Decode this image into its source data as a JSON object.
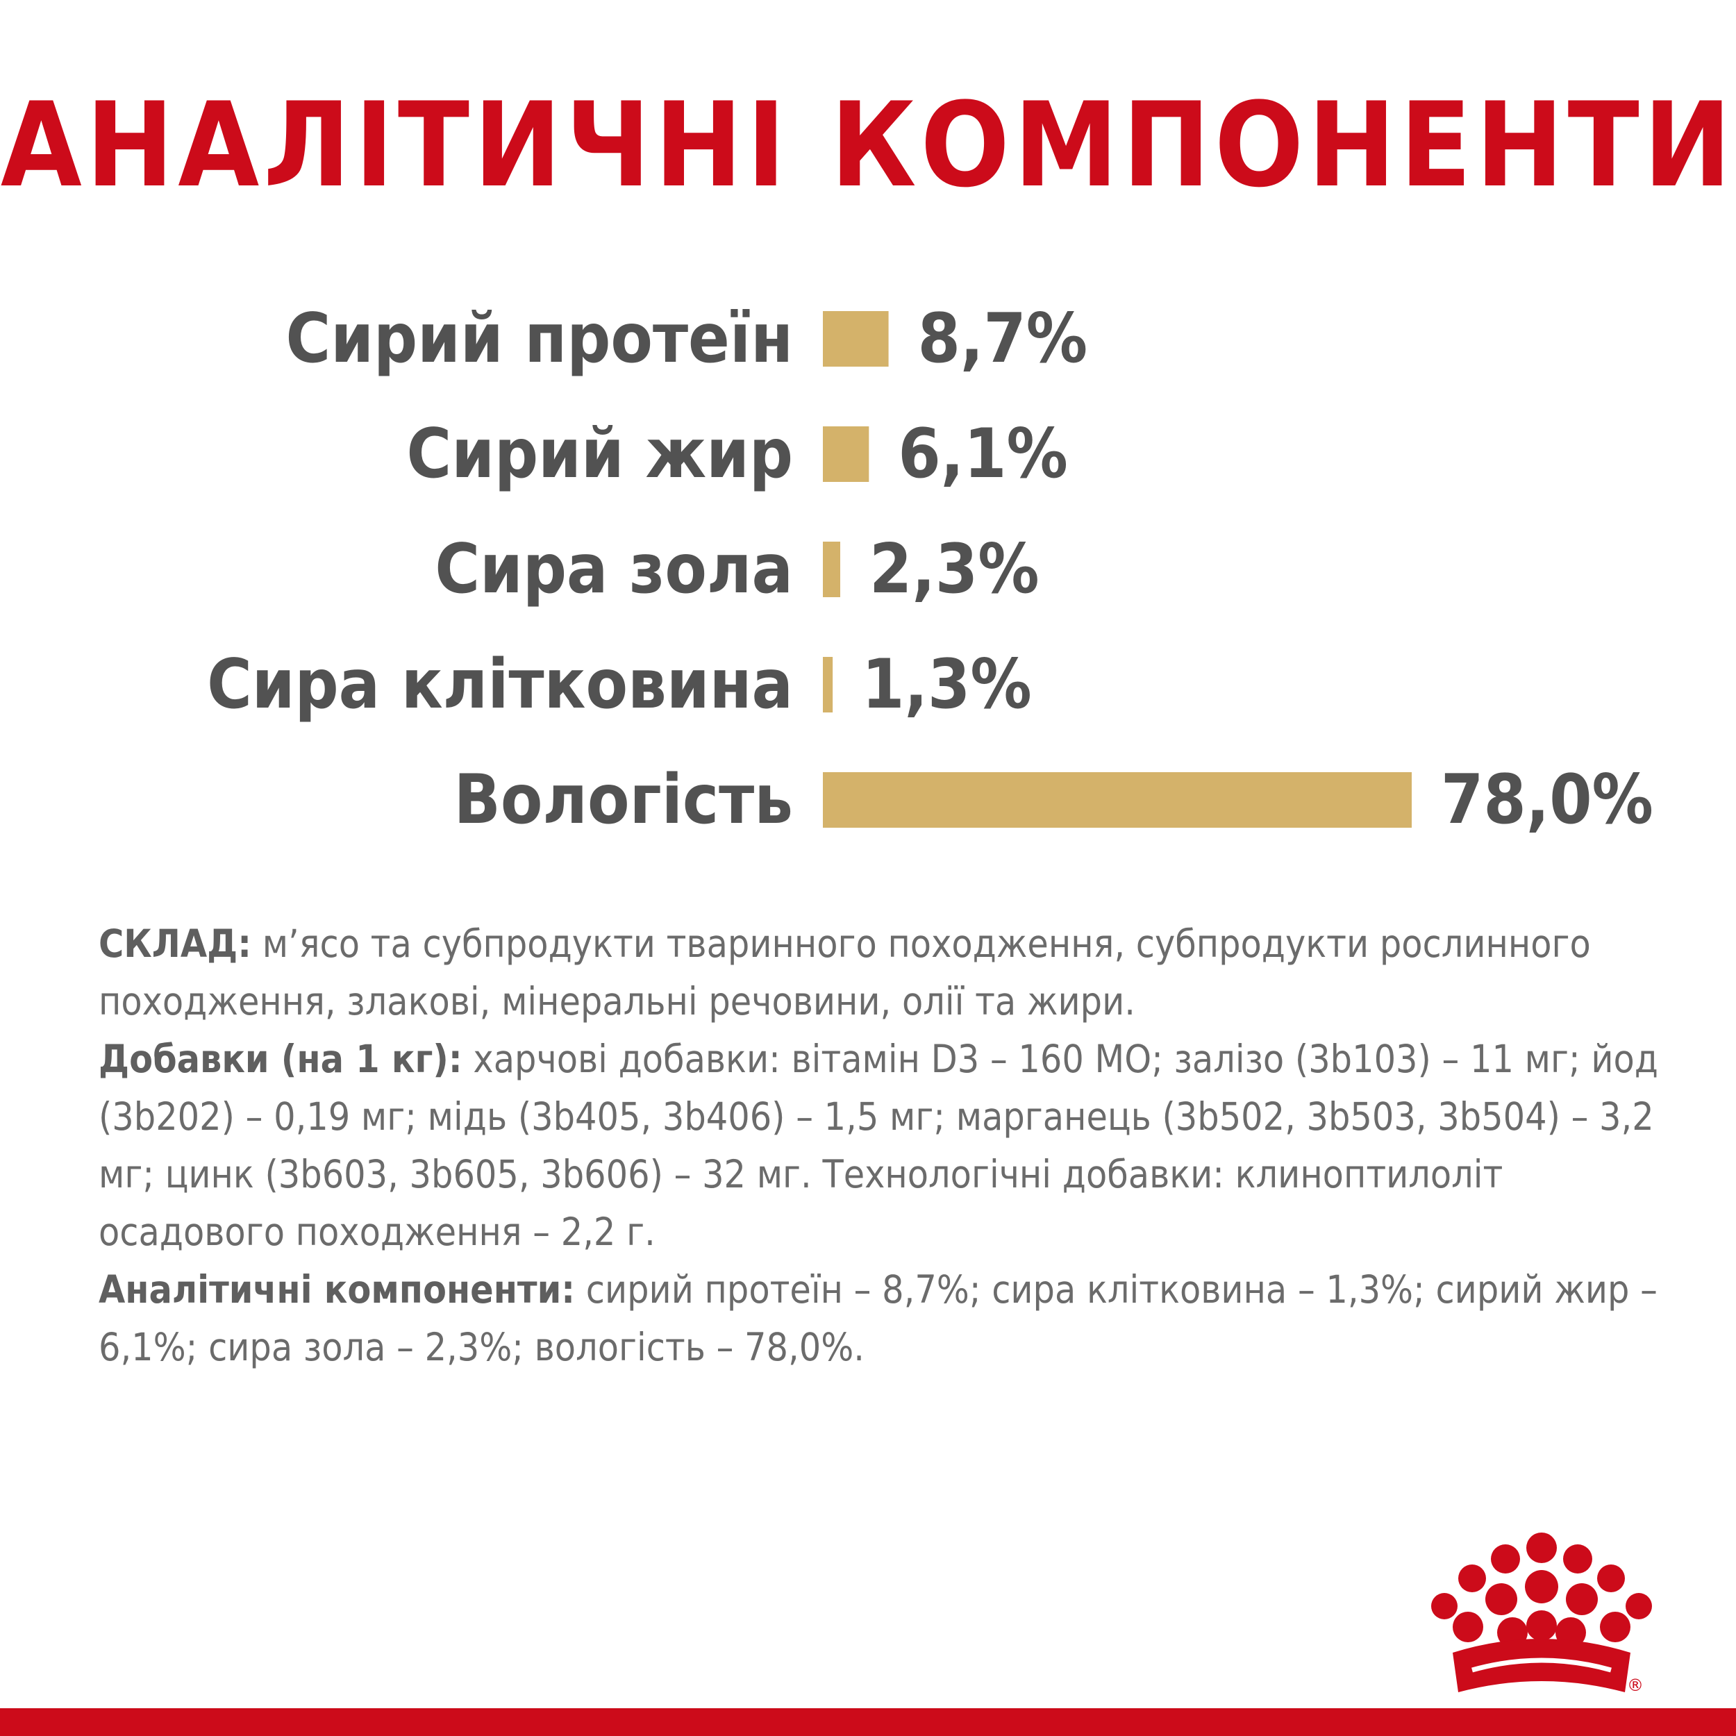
{
  "colors": {
    "accent": "#cc0b1a",
    "bar": "#d4b26a",
    "label": "#525252",
    "body_text": "#6b6b6b"
  },
  "title": "АНАЛІТИЧНІ КОМПОНЕНТИ",
  "chart_data": {
    "type": "bar",
    "orientation": "horizontal",
    "categories": [
      "Сирий протеїн",
      "Сирий жир",
      "Сира зола",
      "Сира клітковина",
      "Вологість"
    ],
    "values": [
      8.7,
      6.1,
      2.3,
      1.3,
      78.0
    ],
    "value_labels": [
      "8,7%",
      "6,1%",
      "2,3%",
      "1,3%",
      "78,0%"
    ],
    "unit": "%",
    "xlim": [
      0,
      78
    ],
    "grid": false,
    "legend": "none"
  },
  "composition": {
    "sklad_label": "СКЛАД:",
    "sklad_text": " м’ясо та субпродукти тваринного походження, субпродукти рослинного походження, злакові, мінеральні речовини, олії та жири.",
    "additives_label": "Добавки (на 1 кг):",
    "additives_text": " харчові добавки: вітамін D3 – 160 МО; залізо (3b103) – 11 мг; йод (3b202) – 0,19 мг; мідь (3b405, 3b406) – 1,5 мг; марганець (3b502, 3b503, 3b504) – 3,2 мг; цинк (3b603, 3b605, 3b606) – 32 мг. Технологічні добавки: клиноптилоліт осадового походження – 2,2 г.",
    "analytic_label": "Аналітичні компоненти:",
    "analytic_text": " сирий протеїн – 8,7%; сира клітковина – 1,3%; сирий жир – 6,1%; сира зола – 2,3%; вологість – 78,0%."
  },
  "logo": {
    "icon": "crown-logo-icon",
    "registered_mark": "®"
  }
}
